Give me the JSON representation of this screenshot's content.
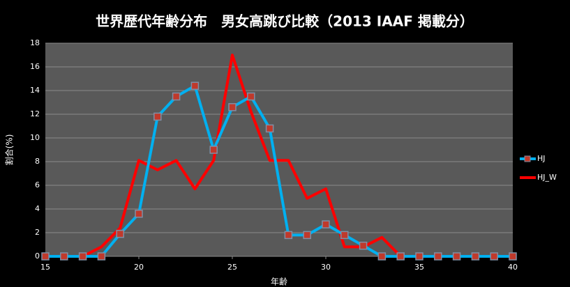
{
  "chart_data": {
    "type": "line",
    "title": "世界歴代年齢分布　男女高跳び比較（2013 IAAF 掲載分）",
    "xlabel": "年齢",
    "ylabel": "割合(%)",
    "x": [
      15,
      16,
      17,
      18,
      19,
      20,
      21,
      22,
      23,
      24,
      25,
      26,
      27,
      28,
      29,
      30,
      31,
      32,
      33,
      34,
      35,
      36,
      37,
      38,
      39,
      40
    ],
    "series": [
      {
        "name": "HJ",
        "color": "#00b0f0",
        "marker": "square",
        "values": [
          0,
          0,
          0,
          0,
          1.9,
          3.6,
          11.8,
          13.5,
          14.4,
          9.0,
          12.6,
          13.5,
          10.8,
          1.8,
          1.8,
          2.7,
          1.8,
          0.9,
          0,
          0,
          0,
          0,
          0,
          0,
          0,
          0
        ]
      },
      {
        "name": "HJ_W",
        "color": "#ff0000",
        "marker": "none",
        "values": [
          0,
          0,
          0,
          0.8,
          2.4,
          8.1,
          7.3,
          8.1,
          5.7,
          8.1,
          17.0,
          12.2,
          8.1,
          8.1,
          4.9,
          5.7,
          0.8,
          0.8,
          1.6,
          0,
          0,
          0,
          0,
          0,
          0,
          0
        ]
      }
    ],
    "xlim": [
      15,
      40
    ],
    "xticks": [
      15,
      20,
      25,
      30,
      35,
      40
    ],
    "ylim": [
      0,
      18
    ],
    "yticks": [
      0,
      2,
      4,
      6,
      8,
      10,
      12,
      14,
      16,
      18
    ],
    "grid": true,
    "legend": "right"
  }
}
